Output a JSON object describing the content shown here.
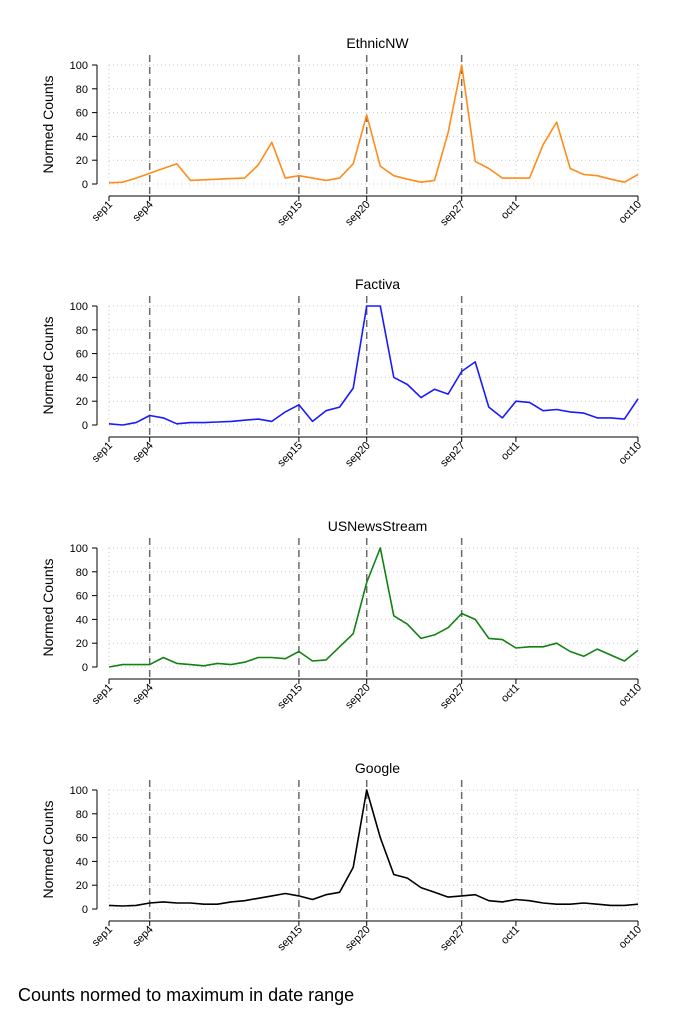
{
  "caption": "Counts normed to maximum in date range",
  "chart_data": [
    {
      "type": "line",
      "title": "EthnicNW",
      "ylabel": "Normed Counts",
      "xlabel": "",
      "color": "#ff8c1a",
      "ylim": [
        0,
        100
      ],
      "yticks": [
        0,
        20,
        40,
        60,
        80,
        100
      ],
      "xlim": [
        1,
        40
      ],
      "xticks": [
        {
          "day": 1,
          "label": "sep1"
        },
        {
          "day": 4,
          "label": "sep4"
        },
        {
          "day": 15,
          "label": "sep15"
        },
        {
          "day": 20,
          "label": "sep20"
        },
        {
          "day": 27,
          "label": "sep27"
        },
        {
          "day": 31,
          "label": "oct1"
        },
        {
          "day": 40,
          "label": "oct10"
        }
      ],
      "vlines": [
        4,
        15,
        20,
        27
      ],
      "x": [
        1,
        2,
        3,
        4,
        5,
        6,
        7,
        8,
        9,
        10,
        11,
        12,
        13,
        14,
        15,
        16,
        17,
        18,
        19,
        20,
        21,
        22,
        23,
        24,
        25,
        26,
        27,
        28,
        29,
        30,
        31,
        32,
        33,
        34,
        35,
        36,
        37,
        38,
        39,
        40
      ],
      "y": [
        1,
        1.5,
        5,
        9,
        13,
        17,
        3,
        3.5,
        4,
        4.5,
        5,
        16,
        35,
        5,
        7,
        5,
        3,
        5,
        17,
        58,
        15,
        7,
        4,
        1.5,
        3,
        43,
        100,
        19,
        13,
        5,
        5,
        5,
        33,
        52,
        13,
        8,
        7,
        4,
        1.5,
        8
      ]
    },
    {
      "type": "line",
      "title": "Factiva",
      "ylabel": "Normed Counts",
      "xlabel": "",
      "color": "#1a1aff",
      "ylim": [
        0,
        100
      ],
      "yticks": [
        0,
        20,
        40,
        60,
        80,
        100
      ],
      "xlim": [
        1,
        40
      ],
      "xticks": [
        {
          "day": 1,
          "label": "sep1"
        },
        {
          "day": 4,
          "label": "sep4"
        },
        {
          "day": 15,
          "label": "sep15"
        },
        {
          "day": 20,
          "label": "sep20"
        },
        {
          "day": 27,
          "label": "sep27"
        },
        {
          "day": 31,
          "label": "oct1"
        },
        {
          "day": 40,
          "label": "oct10"
        }
      ],
      "vlines": [
        4,
        15,
        20,
        27
      ],
      "x": [
        1,
        2,
        3,
        4,
        5,
        6,
        7,
        8,
        9,
        10,
        11,
        12,
        13,
        14,
        15,
        16,
        17,
        18,
        19,
        20,
        21,
        22,
        23,
        24,
        25,
        26,
        27,
        28,
        29,
        30,
        31,
        32,
        33,
        34,
        35,
        36,
        37,
        38,
        39,
        40
      ],
      "y": [
        1,
        0,
        2,
        8,
        6,
        1,
        2,
        2,
        2.5,
        3,
        4,
        5,
        3,
        11,
        17,
        3,
        12,
        15,
        31,
        100,
        100,
        40,
        34,
        23,
        30,
        26,
        45,
        53,
        15,
        6,
        20,
        19,
        12,
        13,
        11,
        10,
        6,
        6,
        5,
        22
      ]
    },
    {
      "type": "line",
      "title": "USNewsStream",
      "ylabel": "Normed Counts",
      "xlabel": "",
      "color": "#128212",
      "ylim": [
        0,
        100
      ],
      "yticks": [
        0,
        20,
        40,
        60,
        80,
        100
      ],
      "xlim": [
        1,
        40
      ],
      "xticks": [
        {
          "day": 1,
          "label": "sep1"
        },
        {
          "day": 4,
          "label": "sep4"
        },
        {
          "day": 15,
          "label": "sep15"
        },
        {
          "day": 20,
          "label": "sep20"
        },
        {
          "day": 27,
          "label": "sep27"
        },
        {
          "day": 31,
          "label": "oct1"
        },
        {
          "day": 40,
          "label": "oct10"
        }
      ],
      "vlines": [
        4,
        15,
        20,
        27
      ],
      "x": [
        1,
        2,
        3,
        4,
        5,
        6,
        7,
        8,
        9,
        10,
        11,
        12,
        13,
        14,
        15,
        16,
        17,
        18,
        19,
        20,
        21,
        22,
        23,
        24,
        25,
        26,
        27,
        28,
        29,
        30,
        31,
        32,
        33,
        34,
        35,
        36,
        37,
        38,
        39,
        40
      ],
      "y": [
        0,
        2,
        2,
        2,
        8,
        3,
        2,
        1,
        3,
        2,
        4,
        8,
        8,
        7,
        13,
        5,
        6,
        17,
        28,
        71,
        100,
        43,
        36,
        24,
        27,
        33,
        45,
        40,
        24,
        23,
        16,
        17,
        17,
        20,
        13,
        9,
        15,
        10,
        5,
        14
      ]
    },
    {
      "type": "line",
      "title": "Google",
      "ylabel": "Normed Counts",
      "xlabel": "",
      "color": "#000000",
      "ylim": [
        0,
        100
      ],
      "yticks": [
        0,
        20,
        40,
        60,
        80,
        100
      ],
      "xlim": [
        1,
        40
      ],
      "xticks": [
        {
          "day": 1,
          "label": "sep1"
        },
        {
          "day": 4,
          "label": "sep4"
        },
        {
          "day": 15,
          "label": "sep15"
        },
        {
          "day": 20,
          "label": "sep20"
        },
        {
          "day": 27,
          "label": "sep27"
        },
        {
          "day": 31,
          "label": "oct1"
        },
        {
          "day": 40,
          "label": "oct10"
        }
      ],
      "vlines": [
        4,
        15,
        20,
        27
      ],
      "x": [
        1,
        2,
        3,
        4,
        5,
        6,
        7,
        8,
        9,
        10,
        11,
        12,
        13,
        14,
        15,
        16,
        17,
        18,
        19,
        20,
        21,
        22,
        23,
        24,
        25,
        26,
        27,
        28,
        29,
        30,
        31,
        32,
        33,
        34,
        35,
        36,
        37,
        38,
        39,
        40
      ],
      "y": [
        3,
        2.5,
        3,
        5,
        6,
        5,
        5,
        4,
        4,
        6,
        7,
        9,
        11,
        13,
        11,
        8,
        12,
        14,
        35,
        100,
        60,
        29,
        26,
        18,
        14,
        10,
        11,
        12,
        7,
        6,
        8,
        7,
        5,
        4,
        4,
        5,
        4,
        3,
        3,
        4
      ]
    }
  ]
}
